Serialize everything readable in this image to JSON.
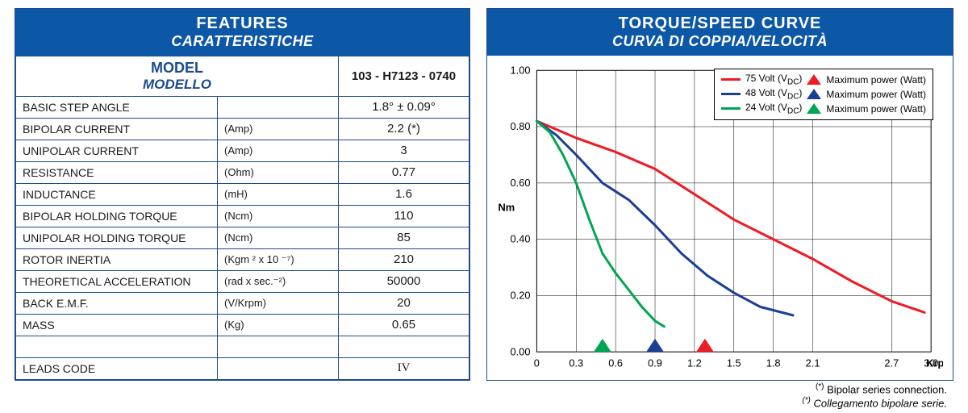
{
  "features": {
    "header_en": "FEATURES",
    "header_it": "CARATTERISTICHE",
    "model_label_en": "MODEL",
    "model_label_it": "MODELLO",
    "model_code": "103 - H7123 - 0740",
    "rows": [
      {
        "name": "BASIC STEP ANGLE",
        "unit": "",
        "value": "1.8°  ± 0.09°"
      },
      {
        "name": "BIPOLAR CURRENT",
        "unit": "(Amp)",
        "value": "2.2 (*)"
      },
      {
        "name": "UNIPOLAR CURRENT",
        "unit": "(Amp)",
        "value": "3"
      },
      {
        "name": "RESISTANCE",
        "unit": "(Ohm)",
        "value": "0.77"
      },
      {
        "name": "INDUCTANCE",
        "unit": "(mH)",
        "value": "1.6"
      },
      {
        "name": "BIPOLAR HOLDING TORQUE",
        "unit": "(Ncm)",
        "value": "110"
      },
      {
        "name": "UNIPOLAR HOLDING TORQUE",
        "unit": "(Ncm)",
        "value": "85"
      },
      {
        "name": "ROTOR INERTIA",
        "unit": "(Kgm ² x 10 ⁻⁷)",
        "value": "210"
      },
      {
        "name": "THEORETICAL ACCELERATION",
        "unit": "(rad x sec.⁻²)",
        "value": "50000"
      },
      {
        "name": "BACK E.M.F.",
        "unit": "(V/Krpm)",
        "value": "20"
      },
      {
        "name": "MASS",
        "unit": "(Kg)",
        "value": "0.65"
      },
      {
        "name": "",
        "unit": "",
        "value": ""
      },
      {
        "name": "LEADS CODE",
        "unit": "",
        "value": "IV",
        "roman": true
      }
    ]
  },
  "chart": {
    "header_en": "TORQUE/SPEED CURVE",
    "header_it": "CURVA DI COPPIA/VELOCITÀ",
    "ylabel": "Nm",
    "xlabel": "Krpm",
    "xlim": [
      0,
      3.0
    ],
    "ylim": [
      0,
      1.0
    ],
    "xticks": [
      0,
      0.3,
      0.6,
      0.9,
      1.2,
      1.5,
      1.8,
      2.1,
      2.7,
      3.0
    ],
    "yticks": [
      0,
      0.2,
      0.4,
      0.6,
      0.8,
      1.0
    ],
    "grid_color": "#000000",
    "background_color": "#ffffff",
    "line_width": 3,
    "series": [
      {
        "label_line": "75 Volt (V_DC)",
        "label_marker": "Maximum power (Watt)",
        "color": "#ed1c24",
        "points": [
          [
            0,
            0.82
          ],
          [
            0.3,
            0.76
          ],
          [
            0.6,
            0.71
          ],
          [
            0.9,
            0.65
          ],
          [
            1.2,
            0.56
          ],
          [
            1.5,
            0.47
          ],
          [
            1.8,
            0.4
          ],
          [
            2.1,
            0.33
          ],
          [
            2.4,
            0.25
          ],
          [
            2.7,
            0.18
          ],
          [
            2.95,
            0.14
          ]
        ],
        "marker_x": 1.28
      },
      {
        "label_line": "48 Volt (V_DC)",
        "label_marker": "Maximum power (Watt)",
        "color": "#1b3f94",
        "points": [
          [
            0,
            0.82
          ],
          [
            0.15,
            0.77
          ],
          [
            0.3,
            0.7
          ],
          [
            0.5,
            0.6
          ],
          [
            0.7,
            0.54
          ],
          [
            0.9,
            0.45
          ],
          [
            1.1,
            0.35
          ],
          [
            1.3,
            0.27
          ],
          [
            1.5,
            0.21
          ],
          [
            1.7,
            0.16
          ],
          [
            1.95,
            0.13
          ]
        ],
        "marker_x": 0.9
      },
      {
        "label_line": "24 Volt (V_DC)",
        "label_marker": "Maximum power (Watt)",
        "color": "#00a651",
        "points": [
          [
            0,
            0.82
          ],
          [
            0.1,
            0.78
          ],
          [
            0.2,
            0.7
          ],
          [
            0.3,
            0.6
          ],
          [
            0.4,
            0.47
          ],
          [
            0.5,
            0.35
          ],
          [
            0.6,
            0.28
          ],
          [
            0.7,
            0.22
          ],
          [
            0.8,
            0.16
          ],
          [
            0.9,
            0.11
          ],
          [
            0.97,
            0.09
          ]
        ],
        "marker_x": 0.5
      }
    ]
  },
  "footnotes": {
    "en": "(*) Bipolar series connection.",
    "it": "(*) Collegamento bipolare serie."
  }
}
